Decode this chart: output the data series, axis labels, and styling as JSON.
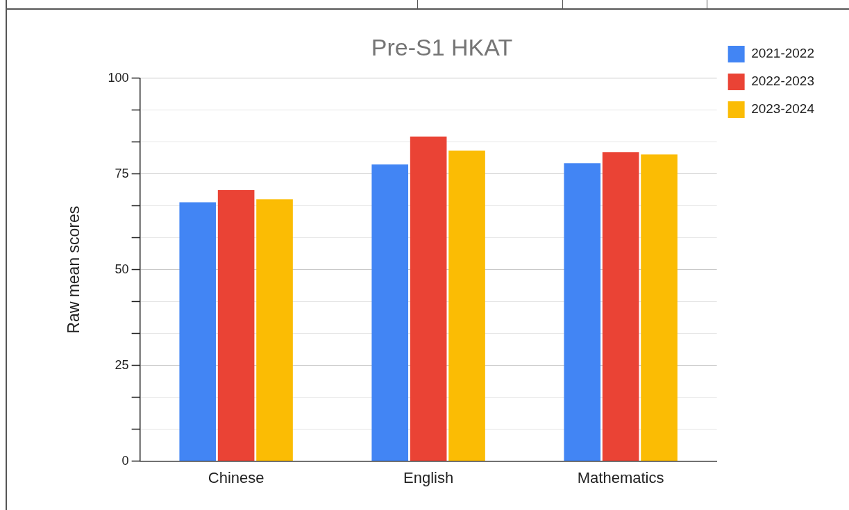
{
  "chart_data": {
    "type": "bar",
    "title": "Pre-S1 HKAT",
    "ylabel": "Raw mean scores",
    "categories": [
      "Chinese",
      "English",
      "Mathematics"
    ],
    "series": [
      {
        "name": "2021-2022",
        "color": "#4285f4",
        "values": [
          67.6,
          77.5,
          77.8
        ]
      },
      {
        "name": "2022-2023",
        "color": "#ea4335",
        "values": [
          70.8,
          84.8,
          80.7
        ]
      },
      {
        "name": "2023-2024",
        "color": "#fbbc04",
        "values": [
          68.4,
          81.1,
          80.1
        ]
      }
    ],
    "ylim": [
      0,
      100
    ],
    "yticks": [
      0,
      {
        "value": 8.33,
        "label": null
      },
      {
        "value": 16.67,
        "label": null
      },
      25,
      {
        "value": 33.33,
        "label": null
      },
      {
        "value": 41.67,
        "label": null
      },
      50,
      {
        "value": 58.33,
        "label": null
      },
      {
        "value": 66.67,
        "label": null
      },
      75,
      {
        "value": 83.33,
        "label": null
      },
      {
        "value": 91.67,
        "label": null
      },
      100
    ],
    "grid": "y",
    "legend": "right top"
  }
}
